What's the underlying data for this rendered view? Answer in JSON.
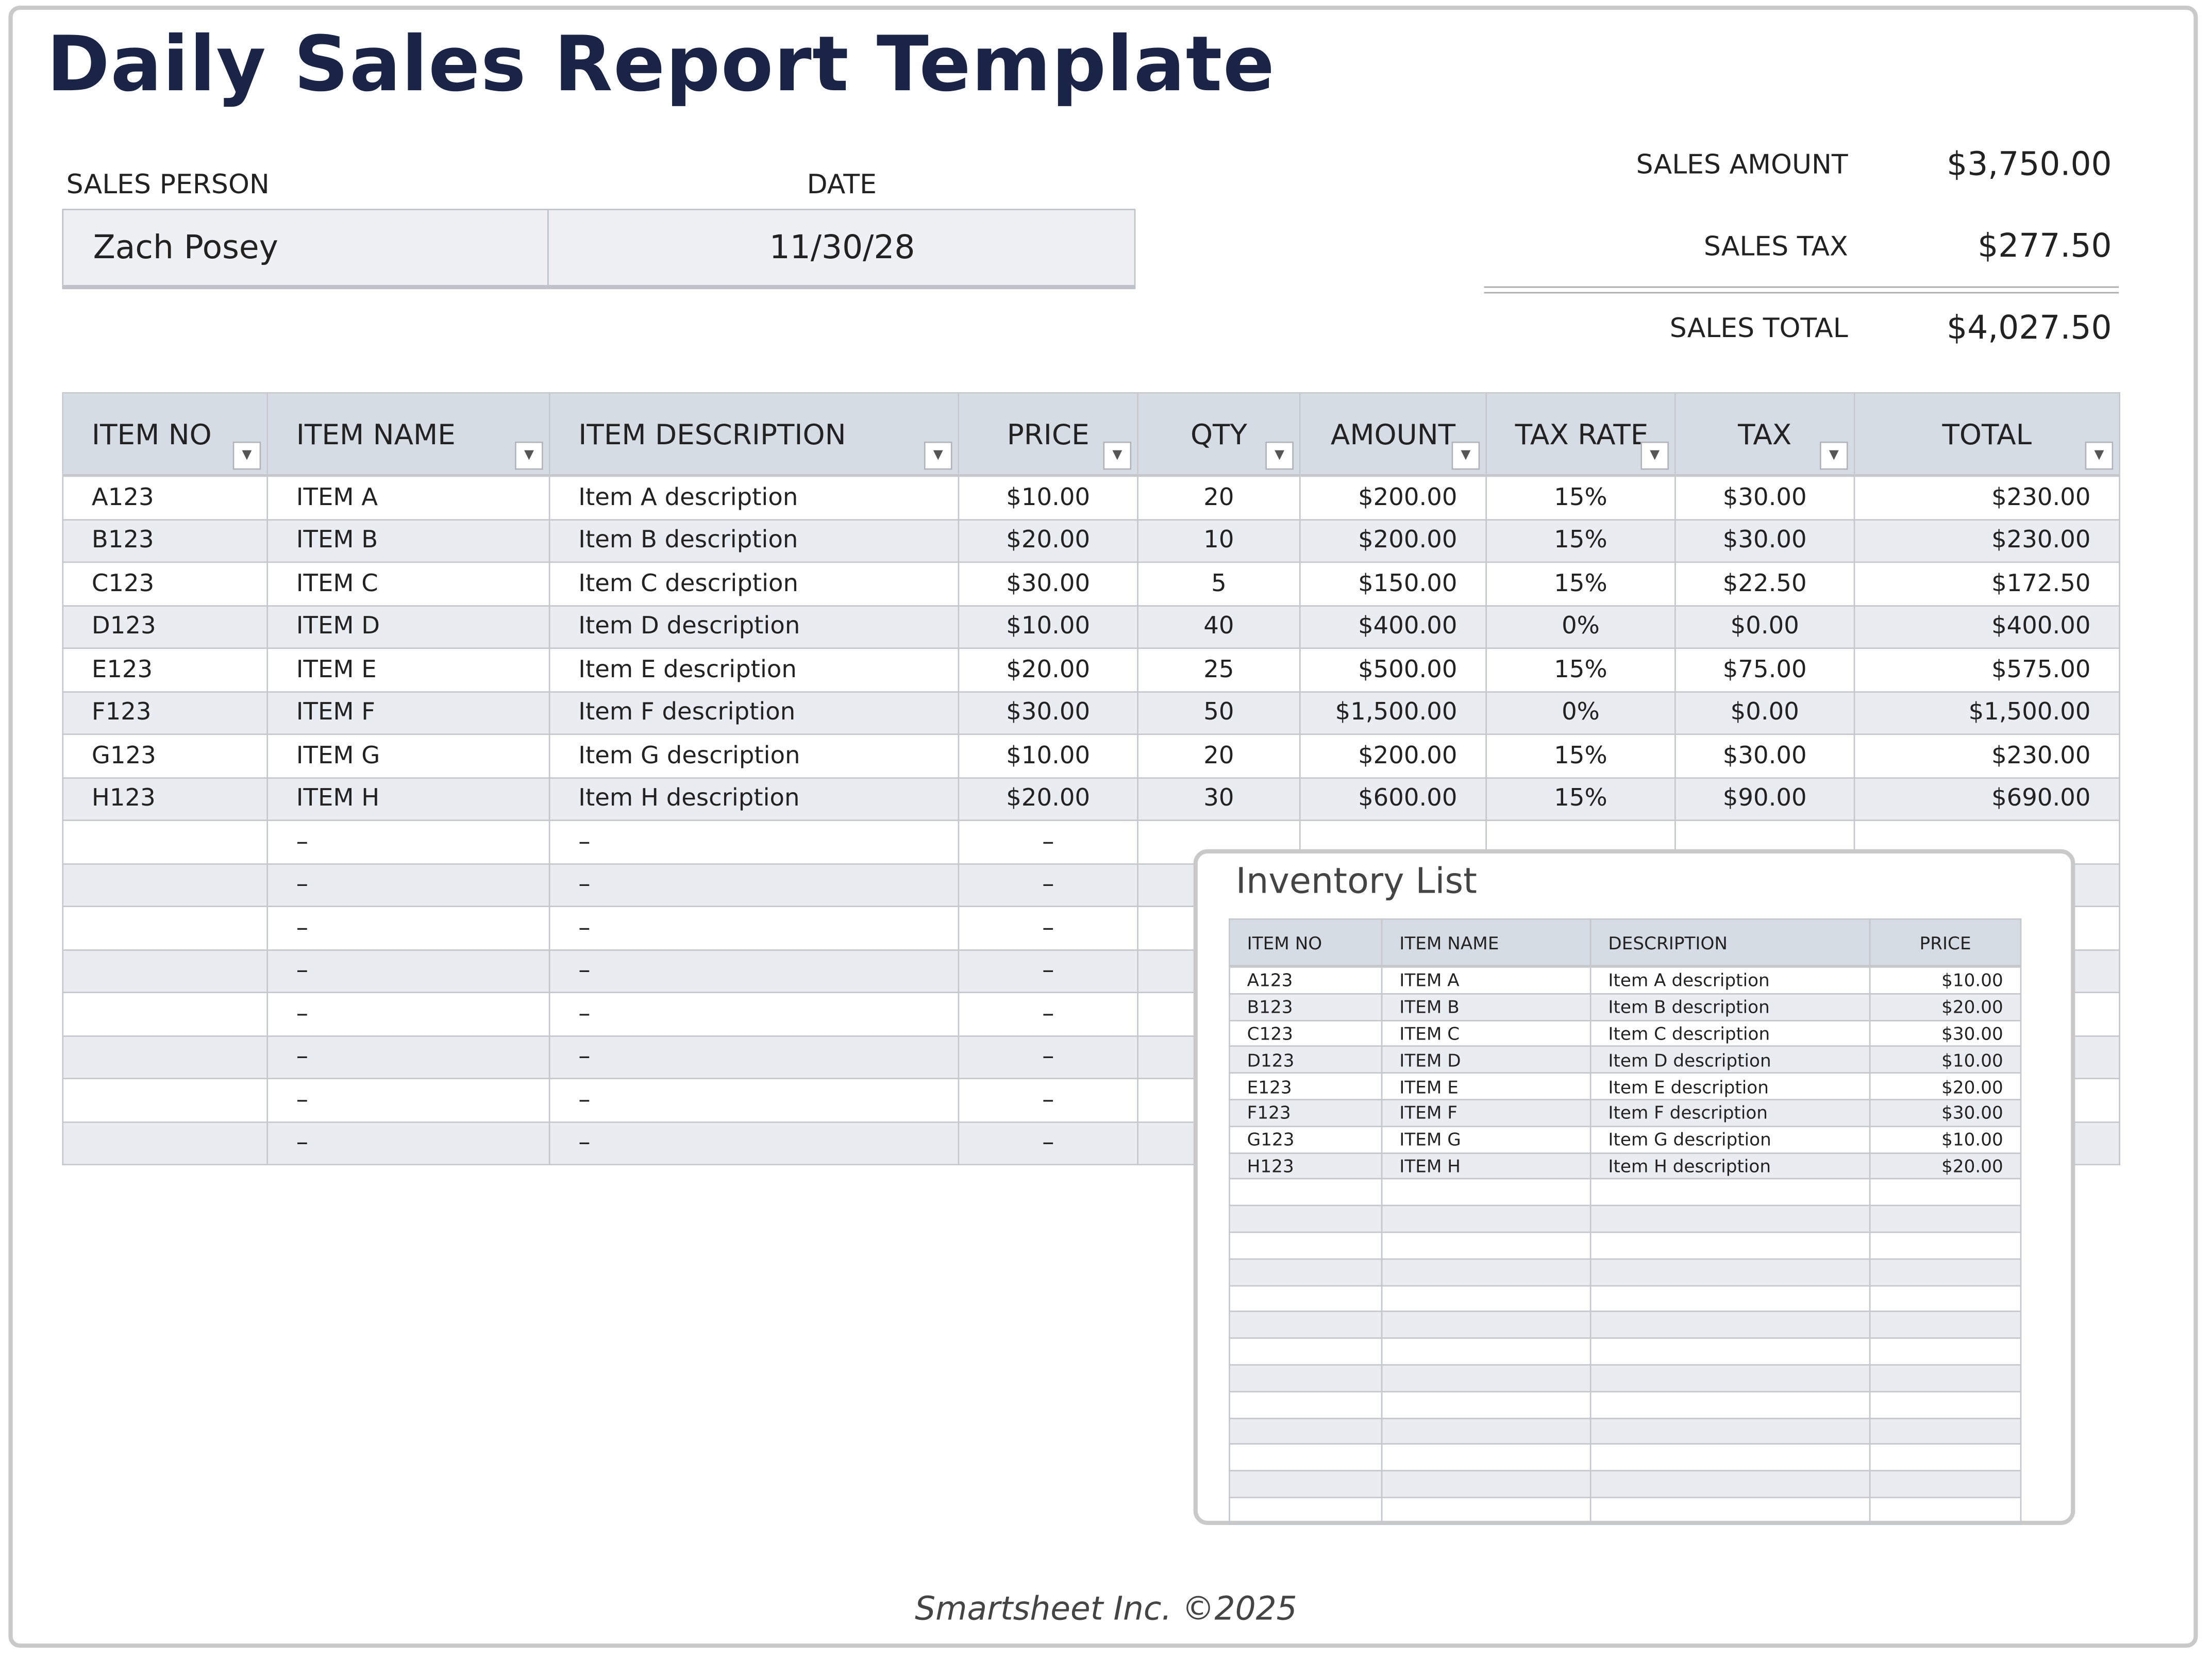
{
  "title": "Daily Sales Report Template",
  "info": {
    "sales_person_label": "SALES PERSON",
    "date_label": "DATE",
    "sales_person": "Zach Posey",
    "date": "11/30/28"
  },
  "summary": {
    "sales_amount_label": "SALES AMOUNT",
    "sales_amount": "$3,750.00",
    "sales_tax_label": "SALES TAX",
    "sales_tax": "$277.50",
    "sales_total_label": "SALES TOTAL",
    "sales_total": "$4,027.50"
  },
  "main_table": {
    "headers": [
      "ITEM NO",
      "ITEM NAME",
      "ITEM DESCRIPTION",
      "PRICE",
      "QTY",
      "AMOUNT",
      "TAX RATE",
      "TAX",
      "TOTAL"
    ],
    "rows": [
      [
        "A123",
        "ITEM A",
        "Item A description",
        "$10.00",
        "20",
        "$200.00",
        "15%",
        "$30.00",
        "$230.00"
      ],
      [
        "B123",
        "ITEM B",
        "Item B description",
        "$20.00",
        "10",
        "$200.00",
        "15%",
        "$30.00",
        "$230.00"
      ],
      [
        "C123",
        "ITEM C",
        "Item C description",
        "$30.00",
        "5",
        "$150.00",
        "15%",
        "$22.50",
        "$172.50"
      ],
      [
        "D123",
        "ITEM D",
        "Item D description",
        "$10.00",
        "40",
        "$400.00",
        "0%",
        "$0.00",
        "$400.00"
      ],
      [
        "E123",
        "ITEM E",
        "Item E description",
        "$20.00",
        "25",
        "$500.00",
        "15%",
        "$75.00",
        "$575.00"
      ],
      [
        "F123",
        "ITEM F",
        "Item F description",
        "$30.00",
        "50",
        "$1,500.00",
        "0%",
        "$0.00",
        "$1,500.00"
      ],
      [
        "G123",
        "ITEM G",
        "Item G description",
        "$10.00",
        "20",
        "$200.00",
        "15%",
        "$30.00",
        "$230.00"
      ],
      [
        "H123",
        "ITEM H",
        "Item H description",
        "$20.00",
        "30",
        "$600.00",
        "15%",
        "$90.00",
        "$690.00"
      ],
      [
        "",
        "–",
        "–",
        "–",
        "",
        "",
        "",
        "",
        ""
      ],
      [
        "",
        "–",
        "–",
        "–",
        "",
        "",
        "",
        "",
        ""
      ],
      [
        "",
        "–",
        "–",
        "–",
        "",
        "",
        "",
        "",
        ""
      ],
      [
        "",
        "–",
        "–",
        "–",
        "",
        "",
        "",
        "",
        ""
      ],
      [
        "",
        "–",
        "–",
        "–",
        "",
        "",
        "",
        "",
        ""
      ],
      [
        "",
        "–",
        "–",
        "–",
        "",
        "",
        "",
        "",
        ""
      ],
      [
        "",
        "–",
        "–",
        "–",
        "",
        "",
        "",
        "",
        ""
      ],
      [
        "",
        "–",
        "–",
        "–",
        "",
        "",
        "",
        "",
        ""
      ]
    ]
  },
  "inventory": {
    "title": "Inventory List",
    "headers": [
      "ITEM NO",
      "ITEM NAME",
      "DESCRIPTION",
      "PRICE"
    ],
    "rows": [
      [
        "A123",
        "ITEM A",
        "Item A description",
        "$10.00"
      ],
      [
        "B123",
        "ITEM B",
        "Item B description",
        "$20.00"
      ],
      [
        "C123",
        "ITEM C",
        "Item C description",
        "$30.00"
      ],
      [
        "D123",
        "ITEM D",
        "Item D description",
        "$10.00"
      ],
      [
        "E123",
        "ITEM E",
        "Item E description",
        "$20.00"
      ],
      [
        "F123",
        "ITEM F",
        "Item F description",
        "$30.00"
      ],
      [
        "G123",
        "ITEM G",
        "Item G description",
        "$10.00"
      ],
      [
        "H123",
        "ITEM H",
        "Item H description",
        "$20.00"
      ],
      [
        "",
        "",
        "",
        ""
      ],
      [
        "",
        "",
        "",
        ""
      ],
      [
        "",
        "",
        "",
        ""
      ],
      [
        "",
        "",
        "",
        ""
      ],
      [
        "",
        "",
        "",
        ""
      ],
      [
        "",
        "",
        "",
        ""
      ],
      [
        "",
        "",
        "",
        ""
      ],
      [
        "",
        "",
        "",
        ""
      ],
      [
        "",
        "",
        "",
        ""
      ],
      [
        "",
        "",
        "",
        ""
      ],
      [
        "",
        "",
        "",
        ""
      ],
      [
        "",
        "",
        "",
        ""
      ],
      [
        "",
        "",
        "",
        ""
      ]
    ]
  },
  "footer": "Smartsheet Inc. ©2025",
  "colors": {
    "title": "#1a2447",
    "header_bg": "#d6dce4",
    "alt_row": "#e9ecf0"
  }
}
